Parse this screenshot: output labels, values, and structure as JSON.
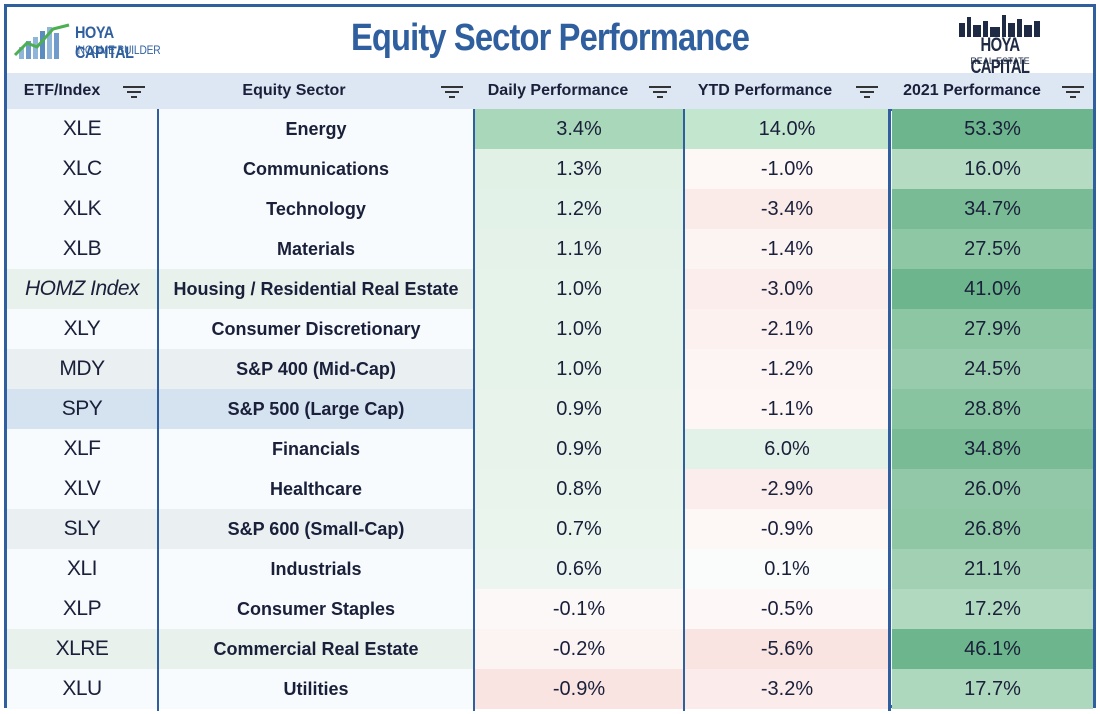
{
  "header": {
    "title": "Equity Sector Performance",
    "logo_left_line1": "HOYA CAPITAL",
    "logo_left_line2": "INCOME BUILDER",
    "logo_right_line1": "HOYA CAPITAL",
    "logo_right_line2": "REAL ESTATE"
  },
  "columns": {
    "etf": "ETF/Index",
    "sector": "Equity Sector",
    "daily": "Daily Performance",
    "ytd": "YTD Performance",
    "perf2021": "2021 Performance"
  },
  "colors": {
    "brand_blue": "#2f5f9e",
    "green_strong": "#6db58c",
    "green_light": "#e3f2e8",
    "red_light": "#fbe7e5"
  },
  "rows": [
    {
      "etf": "XLE",
      "sector": "Energy",
      "daily": "3.4%",
      "ytd": "14.0%",
      "p2021": "53.3%",
      "etf_bg": "#f7fbfd",
      "sec_bg": "#f7fbfd",
      "d_bg": "#a8d8b9",
      "y_bg": "#c3e6cf",
      "p_bg": "#6db58c"
    },
    {
      "etf": "XLC",
      "sector": "Communications",
      "daily": "1.3%",
      "ytd": "-1.0%",
      "p2021": "16.0%",
      "etf_bg": "#f7fbfd",
      "sec_bg": "#f7fbfd",
      "d_bg": "#e1f1e6",
      "y_bg": "#fdf7f6",
      "p_bg": "#b5dcc3"
    },
    {
      "etf": "XLK",
      "sector": "Technology",
      "daily": "1.2%",
      "ytd": "-3.4%",
      "p2021": "34.7%",
      "etf_bg": "#f7fbfd",
      "sec_bg": "#f7fbfd",
      "d_bg": "#e3f2e8",
      "y_bg": "#faeae8",
      "p_bg": "#78bb95"
    },
    {
      "etf": "XLB",
      "sector": "Materials",
      "daily": "1.1%",
      "ytd": "-1.4%",
      "p2021": "27.5%",
      "etf_bg": "#f7fbfd",
      "sec_bg": "#f7fbfd",
      "d_bg": "#e4f2e9",
      "y_bg": "#fcf4f3",
      "p_bg": "#8ec7a4"
    },
    {
      "etf": "HOMZ Index",
      "sector": "Housing / Residential Real Estate",
      "daily": "1.0%",
      "ytd": "-3.0%",
      "p2021": "41.0%",
      "etf_bg": "#e9f1ec",
      "sec_bg": "#e9f1ec",
      "d_bg": "#e6f3ea",
      "y_bg": "#fbedeb",
      "p_bg": "#6db58c",
      "italic": true
    },
    {
      "etf": "XLY",
      "sector": "Consumer Discretionary",
      "daily": "1.0%",
      "ytd": "-2.1%",
      "p2021": "27.9%",
      "etf_bg": "#f7fbfd",
      "sec_bg": "#f7fbfd",
      "d_bg": "#e6f3ea",
      "y_bg": "#fcf1ef",
      "p_bg": "#8cc6a2"
    },
    {
      "etf": "MDY",
      "sector": "S&P 400 (Mid-Cap)",
      "daily": "1.0%",
      "ytd": "-1.2%",
      "p2021": "24.5%",
      "etf_bg": "#eaf0f2",
      "sec_bg": "#eaf0f2",
      "d_bg": "#e6f3ea",
      "y_bg": "#fcf5f4",
      "p_bg": "#98cbab"
    },
    {
      "etf": "SPY",
      "sector": "S&P 500 (Large Cap)",
      "daily": "0.9%",
      "ytd": "-1.1%",
      "p2021": "28.8%",
      "etf_bg": "#d5e3f0",
      "sec_bg": "#d5e3f0",
      "d_bg": "#e7f3eb",
      "y_bg": "#fdf6f5",
      "p_bg": "#89c4a0"
    },
    {
      "etf": "XLF",
      "sector": "Financials",
      "daily": "0.9%",
      "ytd": "6.0%",
      "p2021": "34.8%",
      "etf_bg": "#f7fbfd",
      "sec_bg": "#f7fbfd",
      "d_bg": "#e7f3eb",
      "y_bg": "#e3f2e8",
      "p_bg": "#78bb95"
    },
    {
      "etf": "XLV",
      "sector": "Healthcare",
      "daily": "0.8%",
      "ytd": "-2.9%",
      "p2021": "26.0%",
      "etf_bg": "#f7fbfd",
      "sec_bg": "#f7fbfd",
      "d_bg": "#e9f4ec",
      "y_bg": "#fbedeb",
      "p_bg": "#92c8a7"
    },
    {
      "etf": "SLY",
      "sector": "S&P 600 (Small-Cap)",
      "daily": "0.7%",
      "ytd": "-0.9%",
      "p2021": "26.8%",
      "etf_bg": "#eaf0f2",
      "sec_bg": "#eaf0f2",
      "d_bg": "#eaf5ed",
      "y_bg": "#fdf7f6",
      "p_bg": "#8fc7a5"
    },
    {
      "etf": "XLI",
      "sector": "Industrials",
      "daily": "0.6%",
      "ytd": "0.1%",
      "p2021": "21.1%",
      "etf_bg": "#f7fbfd",
      "sec_bg": "#f7fbfd",
      "d_bg": "#ecf5ef",
      "y_bg": "#fafcfb",
      "p_bg": "#a2d0b3"
    },
    {
      "etf": "XLP",
      "sector": "Consumer Staples",
      "daily": "-0.1%",
      "ytd": "-0.5%",
      "p2021": "17.2%",
      "etf_bg": "#f7fbfd",
      "sec_bg": "#f7fbfd",
      "d_bg": "#fdf8f8",
      "y_bg": "#fdf8f7",
      "p_bg": "#b0d9bf"
    },
    {
      "etf": "XLRE",
      "sector": "Commercial Real Estate",
      "daily": "-0.2%",
      "ytd": "-5.6%",
      "p2021": "46.1%",
      "etf_bg": "#e9f1ec",
      "sec_bg": "#e9f1ec",
      "d_bg": "#fcf4f3",
      "y_bg": "#f9e4e1",
      "p_bg": "#6db58c"
    },
    {
      "etf": "XLU",
      "sector": "Utilities",
      "daily": "-0.9%",
      "ytd": "-3.2%",
      "p2021": "17.7%",
      "etf_bg": "#f7fbfd",
      "sec_bg": "#f7fbfd",
      "d_bg": "#f9e4e1",
      "y_bg": "#fbeceb",
      "p_bg": "#aed8bd"
    }
  ]
}
